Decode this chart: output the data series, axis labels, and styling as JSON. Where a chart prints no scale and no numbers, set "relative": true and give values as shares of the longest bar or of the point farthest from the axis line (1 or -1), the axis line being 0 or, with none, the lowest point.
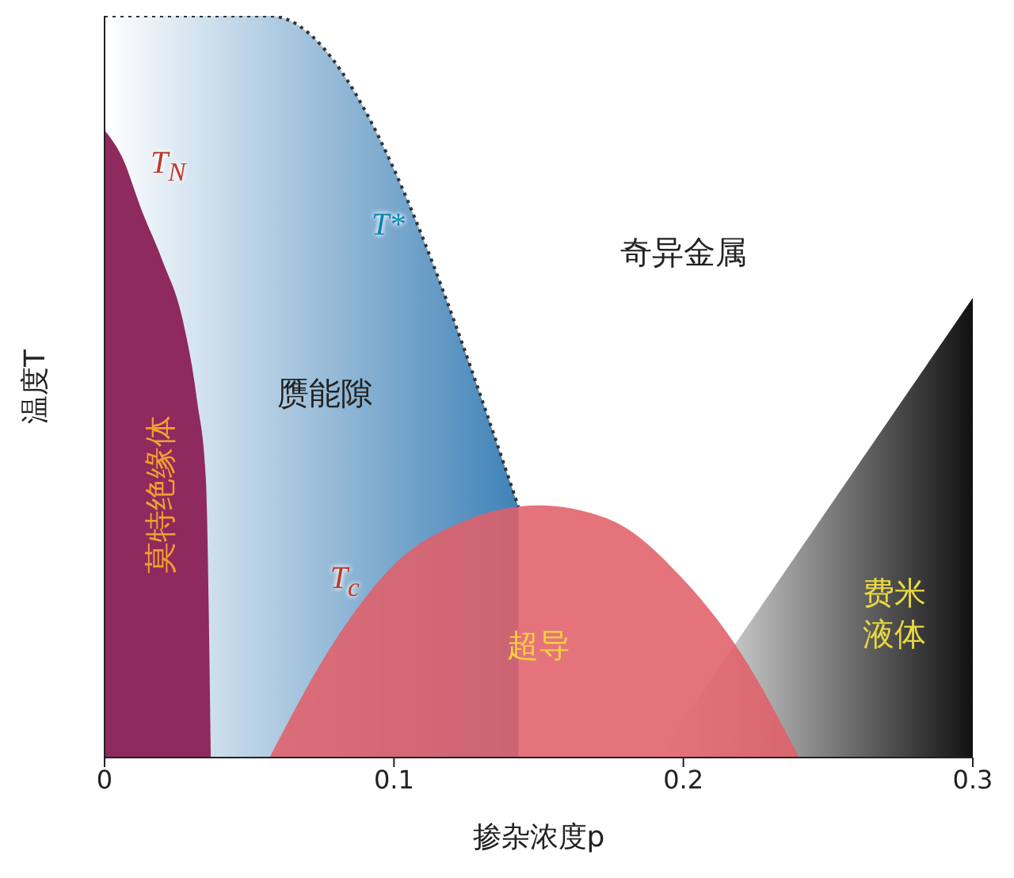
{
  "chart_data": {
    "type": "area",
    "relative": true,
    "xlabel": "掺杂浓度p",
    "ylabel": "温度T",
    "xlim": [
      0,
      0.3
    ],
    "xticks": [
      0,
      0.1,
      0.2,
      0.3
    ],
    "series": [
      {
        "name": "T*",
        "color": "#3f82b7",
        "line_style": "dotted",
        "x": [
          0,
          0.057,
          0.143
        ],
        "values": [
          1,
          1,
          0.338
        ]
      },
      {
        "name": "T$_{N}$",
        "color": "#8e2a5e",
        "x": [
          0,
          0.006,
          0.013,
          0.02,
          0.027,
          0.032,
          0.035,
          0.0367
        ],
        "values": [
          0.846,
          0.81,
          0.736,
          0.67,
          0.59,
          0.48,
          0.376,
          0
        ]
      },
      {
        "color": "#111111",
        "x": [
          0.191,
          0.3
        ],
        "values": [
          0,
          0.62
        ]
      },
      {
        "name": "T$_{c}$",
        "color": "#e0606a",
        "x": [
          0.057,
          0.08,
          0.1,
          0.125,
          0.15,
          0.175,
          0.2,
          0.22,
          0.24
        ],
        "values": [
          0,
          0.16,
          0.26,
          0.32,
          0.34,
          0.32,
          0.24,
          0.14,
          0
        ]
      }
    ],
    "annotations": [
      "奇异金属",
      "赝能隙",
      "莫特绝缘体",
      "超导",
      "费米液体"
    ]
  }
}
